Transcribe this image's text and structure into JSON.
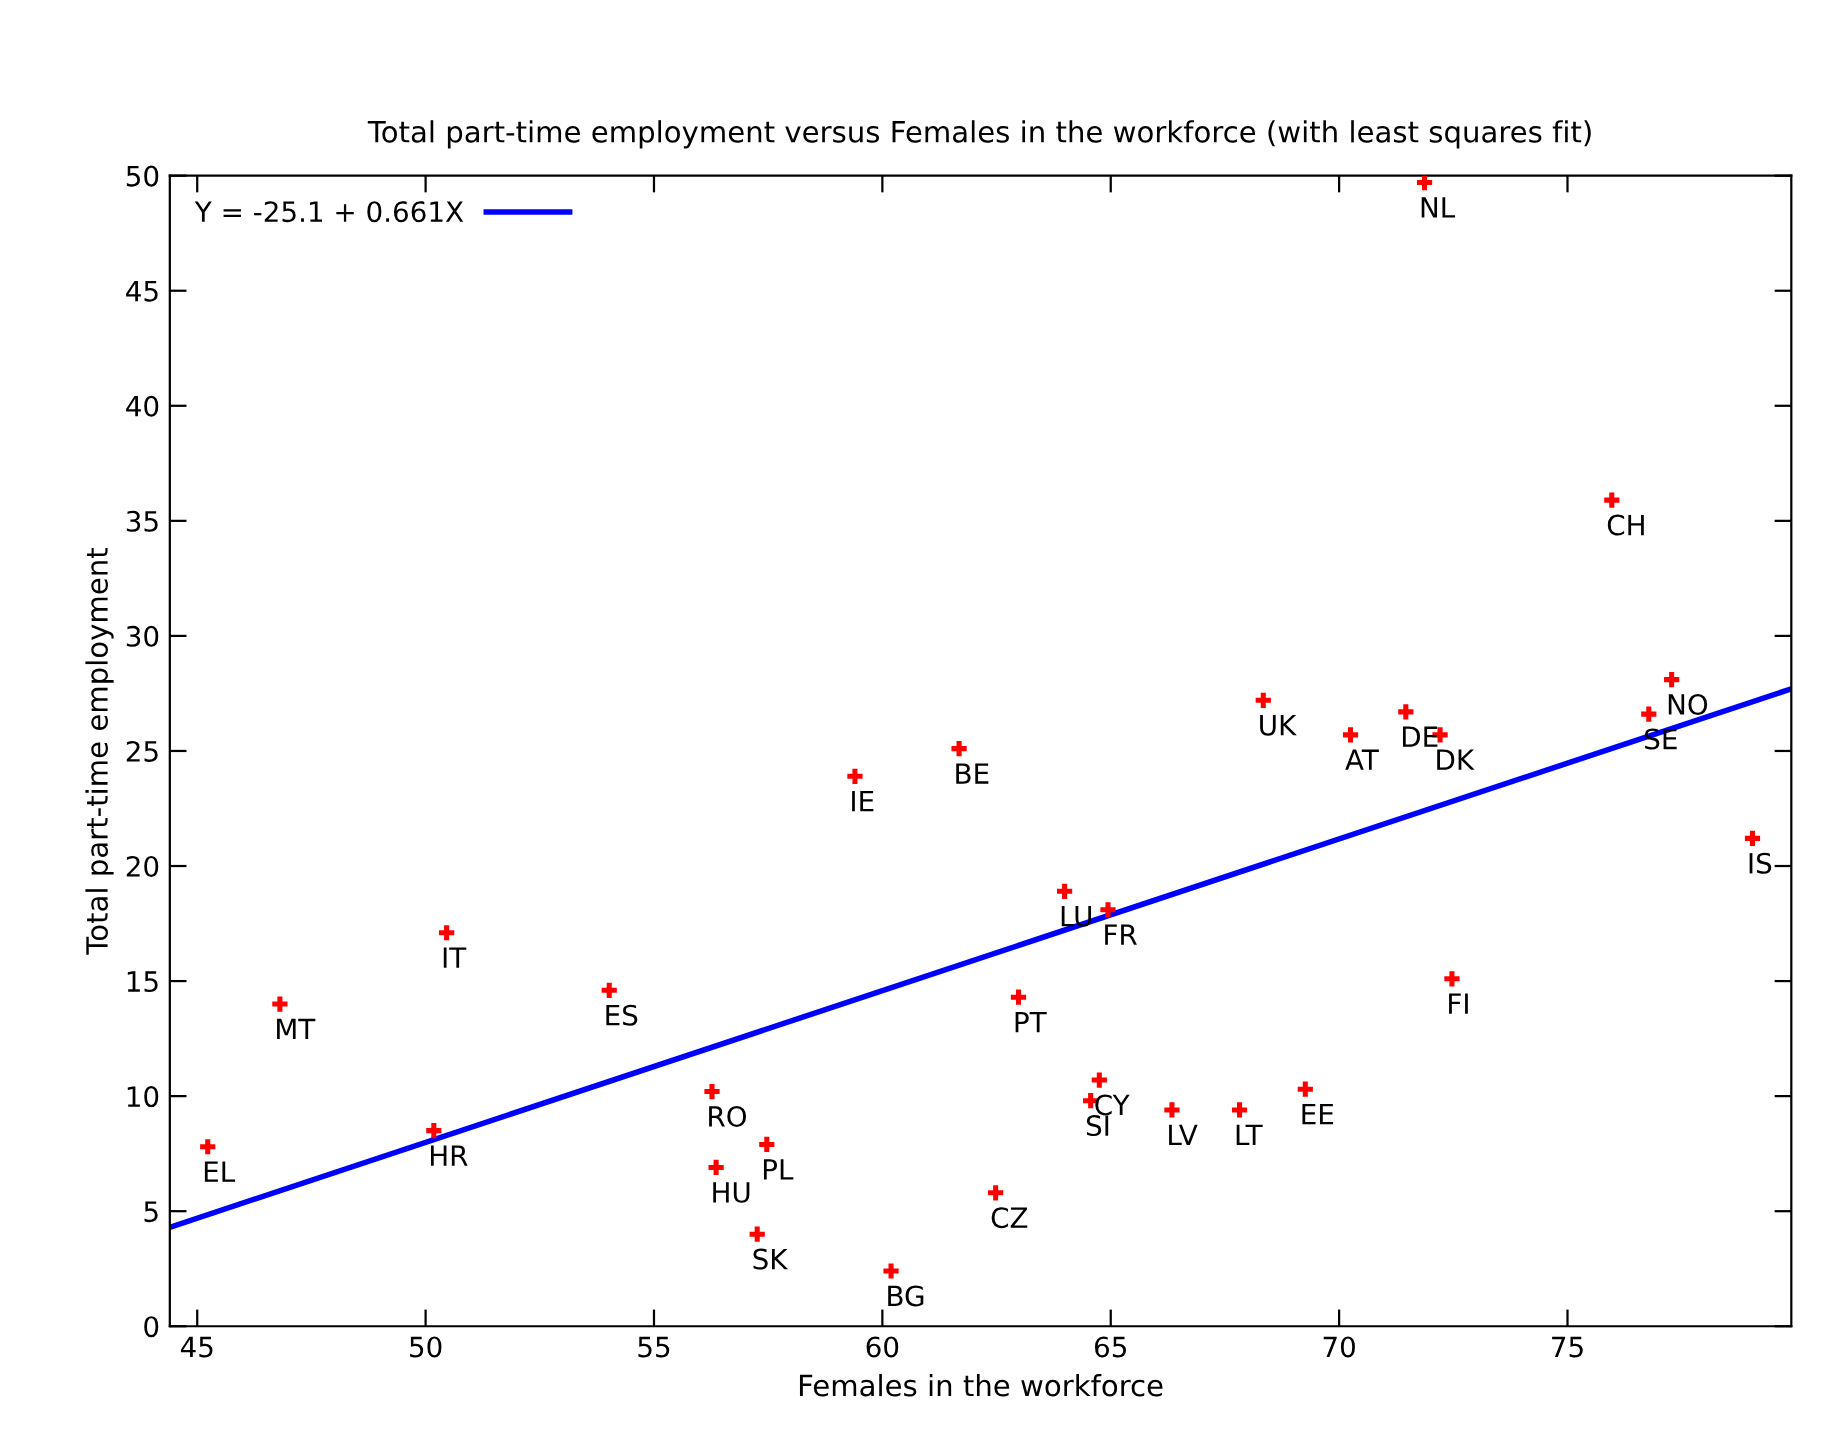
{
  "chart_data": {
    "type": "scatter",
    "title": "Total part-time employment versus Females in the workforce (with least squares fit)",
    "xlabel": "Females in the workforce",
    "ylabel": "Total part-time employment",
    "xlim": [
      44.4,
      79.9
    ],
    "ylim": [
      0,
      50
    ],
    "xticks": [
      45,
      50,
      55,
      60,
      65,
      70,
      75
    ],
    "yticks": [
      0,
      5,
      10,
      15,
      20,
      25,
      30,
      35,
      40,
      45,
      50
    ],
    "grid": false,
    "legend": "top left",
    "marker": "cross",
    "series": [
      {
        "color": "#ff0000",
        "x": [
          45.23,
          46.81,
          50.46,
          50.18,
          54.02,
          56.27,
          56.36,
          57.47,
          57.26,
          60.19,
          59.4,
          61.68,
          68.34,
          70.25,
          71.46,
          72.21,
          63.99,
          64.94,
          62.98,
          64.75,
          64.56,
          66.34,
          67.82,
          69.26,
          72.47,
          62.48,
          71.87,
          75.97,
          77.28,
          76.78,
          79.05
        ],
        "values": [
          7.8,
          14.0,
          17.1,
          8.5,
          14.6,
          10.2,
          6.9,
          7.9,
          4.0,
          2.4,
          23.9,
          25.1,
          27.2,
          25.7,
          26.7,
          25.7,
          18.9,
          18.1,
          14.3,
          10.7,
          9.8,
          9.4,
          9.4,
          10.3,
          15.1,
          5.8,
          49.7,
          35.9,
          28.1,
          26.6,
          21.2
        ]
      },
      {
        "type": "line",
        "name": "Y = -25.1 + 0.661X",
        "color": "#0000ff",
        "marker": "none",
        "line_style": "solid",
        "x": [
          44.4,
          79.9
        ],
        "values": [
          4.3,
          27.7
        ]
      }
    ],
    "annotations": [
      {
        "text": "EL",
        "x": 45.23,
        "y": 7.8
      },
      {
        "text": "MT",
        "x": 46.81,
        "y": 14.0
      },
      {
        "text": "IT",
        "x": 50.46,
        "y": 17.1
      },
      {
        "text": "HR",
        "x": 50.18,
        "y": 8.5
      },
      {
        "text": "ES",
        "x": 54.02,
        "y": 14.6
      },
      {
        "text": "RO",
        "x": 56.27,
        "y": 10.2
      },
      {
        "text": "HU",
        "x": 56.36,
        "y": 6.9
      },
      {
        "text": "PL",
        "x": 57.47,
        "y": 7.9
      },
      {
        "text": "SK",
        "x": 57.26,
        "y": 4.0
      },
      {
        "text": "BG",
        "x": 60.19,
        "y": 2.4
      },
      {
        "text": "IE",
        "x": 59.4,
        "y": 23.9
      },
      {
        "text": "BE",
        "x": 61.68,
        "y": 25.1
      },
      {
        "text": "UK",
        "x": 68.34,
        "y": 27.2
      },
      {
        "text": "AT",
        "x": 70.25,
        "y": 25.7
      },
      {
        "text": "DE",
        "x": 71.46,
        "y": 26.7
      },
      {
        "text": "DK",
        "x": 72.21,
        "y": 25.7
      },
      {
        "text": "LU",
        "x": 63.99,
        "y": 18.9
      },
      {
        "text": "FR",
        "x": 64.94,
        "y": 18.1
      },
      {
        "text": "PT",
        "x": 62.98,
        "y": 14.3
      },
      {
        "text": "CY",
        "x": 64.75,
        "y": 10.7
      },
      {
        "text": "SI",
        "x": 64.56,
        "y": 9.8
      },
      {
        "text": "LV",
        "x": 66.34,
        "y": 9.4
      },
      {
        "text": "LT",
        "x": 67.82,
        "y": 9.4
      },
      {
        "text": "EE",
        "x": 69.26,
        "y": 10.3
      },
      {
        "text": "FI",
        "x": 72.47,
        "y": 15.1
      },
      {
        "text": "CZ",
        "x": 62.48,
        "y": 5.8
      },
      {
        "text": "NL",
        "x": 71.87,
        "y": 49.7
      },
      {
        "text": "CH",
        "x": 75.97,
        "y": 35.9
      },
      {
        "text": "NO",
        "x": 77.28,
        "y": 28.1
      },
      {
        "text": "SE",
        "x": 76.78,
        "y": 26.6
      },
      {
        "text": "IS",
        "x": 79.05,
        "y": 21.2
      }
    ]
  }
}
